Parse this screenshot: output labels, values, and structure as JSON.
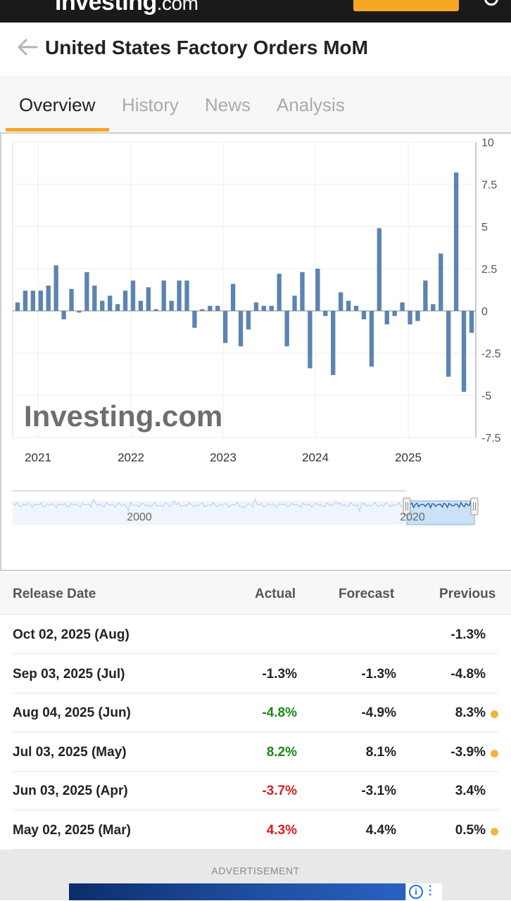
{
  "header": {
    "logo_main": "Investing",
    "logo_suffix": ".com",
    "signup_label": "",
    "search_icon": "search-icon"
  },
  "title": {
    "back_icon": "arrow-left-icon",
    "text": "United States Factory Orders MoM"
  },
  "tabs": [
    {
      "label": "Overview",
      "active": true
    },
    {
      "label": "History",
      "active": false
    },
    {
      "label": "News",
      "active": false
    },
    {
      "label": "Analysis",
      "active": false
    }
  ],
  "chart_data": {
    "type": "bar",
    "watermark": "Investing.com",
    "x_tick_labels": [
      "2021",
      "2022",
      "2023",
      "2024",
      "2025"
    ],
    "y_tick_labels": [
      "10",
      "7.5",
      "5",
      "2.5",
      "0",
      "-2.5",
      "-5",
      "-7.5"
    ],
    "ylim": [
      -7.5,
      10
    ],
    "grid": true,
    "bar_color": "#5b84b1",
    "values": [
      0.5,
      1.2,
      1.2,
      1.2,
      1.5,
      2.7,
      -0.5,
      1.3,
      -0.1,
      2.3,
      1.5,
      0.6,
      0.9,
      0.4,
      1.2,
      1.8,
      0.6,
      1.4,
      0.1,
      1.8,
      0.6,
      1.8,
      1.8,
      -1.0,
      0.1,
      0.3,
      0.3,
      -1.9,
      1.6,
      -2.1,
      -1.1,
      0.5,
      0.3,
      0.3,
      2.2,
      -2.1,
      0.9,
      2.3,
      -3.4,
      2.5,
      -0.3,
      -3.8,
      1.1,
      0.6,
      0.3,
      -0.5,
      -3.3,
      4.9,
      -0.8,
      -0.3,
      0.5,
      -0.8,
      -0.6,
      1.8,
      0.4,
      3.4,
      -3.9,
      8.2,
      -4.8,
      -1.3
    ],
    "navigator": {
      "tick_labels": [
        "2000",
        "2020"
      ]
    }
  },
  "table": {
    "headers": {
      "release_date": "Release Date",
      "actual": "Actual",
      "forecast": "Forecast",
      "previous": "Previous"
    },
    "rows": [
      {
        "date": "Oct 02, 2025 (Aug)",
        "actual": "",
        "actual_color": "#222222",
        "forecast": "",
        "previous": "-1.3%",
        "revised": false
      },
      {
        "date": "Sep 03, 2025 (Jul)",
        "actual": "-1.3%",
        "actual_color": "#222222",
        "forecast": "-1.3%",
        "previous": "-4.8%",
        "revised": false
      },
      {
        "date": "Aug 04, 2025 (Jun)",
        "actual": "-4.8%",
        "actual_color": "#1a8a1a",
        "forecast": "-4.9%",
        "previous": "8.3%",
        "revised": true
      },
      {
        "date": "Jul 03, 2025 (May)",
        "actual": "8.2%",
        "actual_color": "#1a8a1a",
        "forecast": "8.1%",
        "previous": "-3.9%",
        "revised": true
      },
      {
        "date": "Jun 03, 2025 (Apr)",
        "actual": "-3.7%",
        "actual_color": "#d91e1e",
        "forecast": "-3.1%",
        "previous": "3.4%",
        "revised": false
      },
      {
        "date": "May 02, 2025 (Mar)",
        "actual": "4.3%",
        "actual_color": "#d91e1e",
        "forecast": "4.4%",
        "previous": "0.5%",
        "revised": true
      }
    ]
  },
  "advertisement": {
    "label": "ADVERTISEMENT",
    "info_icon": "info-icon",
    "menu_icon": "more-vertical-icon"
  }
}
